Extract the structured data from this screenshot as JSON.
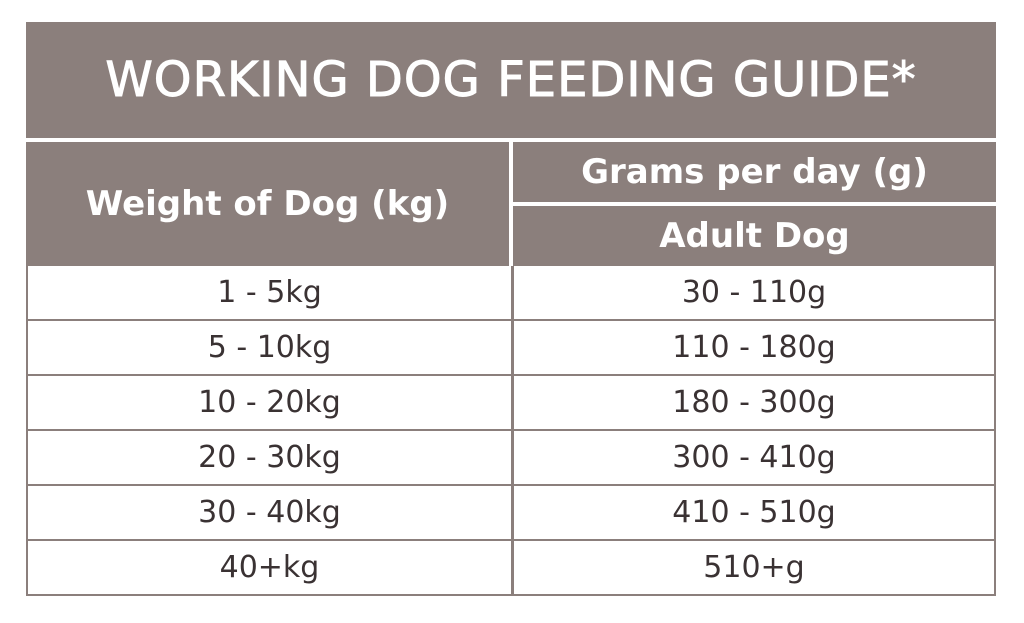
{
  "title": "WORKING DOG FEEDING GUIDE*",
  "header": {
    "weight_label": "Weight of Dog (kg)",
    "grams_label": "Grams per day (g)",
    "adult_label": "Adult Dog"
  },
  "rows": [
    {
      "weight": "1 - 5kg",
      "grams": "30 - 110g"
    },
    {
      "weight": "5 - 10kg",
      "grams": "110 - 180g"
    },
    {
      "weight": "10 - 20kg",
      "grams": "180 - 300g"
    },
    {
      "weight": "20 - 30kg",
      "grams": "300 - 410g"
    },
    {
      "weight": "30 - 40kg",
      "grams": "410 - 510g"
    },
    {
      "weight": "40+kg",
      "grams": "510+g"
    }
  ],
  "colors": {
    "header_bg": "#8b7f7c",
    "header_text": "#ffffff",
    "body_text": "#3a3233"
  }
}
